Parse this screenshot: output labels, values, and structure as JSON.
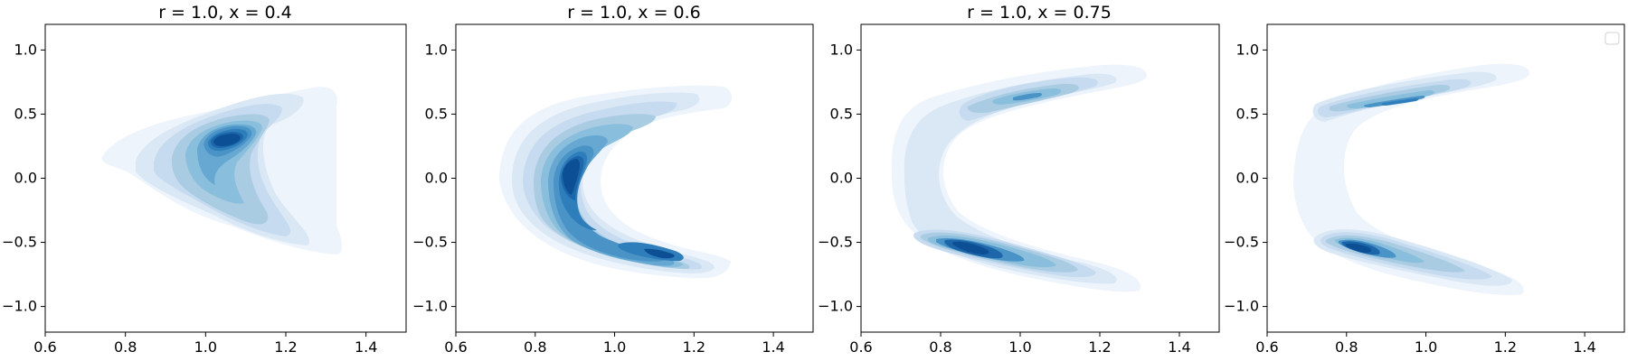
{
  "figure": {
    "colormap": [
      "#eef4fb",
      "#dae8f5",
      "#c6dbef",
      "#a9cce3",
      "#89bedc",
      "#66a8d1",
      "#4a93c6",
      "#2f7ebc",
      "#1c66a9",
      "#0d4f95",
      "#08306b"
    ],
    "frame_color": "#000000"
  },
  "chart_data": [
    {
      "type": "contour",
      "title": "r = 1.0, x = 0.4",
      "xlim": [
        0.6,
        1.5
      ],
      "ylim": [
        -1.2,
        1.2
      ],
      "xticks": [
        0.6,
        0.8,
        1.0,
        1.2,
        1.4
      ],
      "xtick_labels": [
        "0.6",
        "0.8",
        "1.0",
        "1.2",
        "1.4"
      ],
      "yticks": [
        -1.0,
        -0.5,
        0.0,
        0.5,
        1.0
      ],
      "ytick_labels": [
        "−1.0",
        "−0.5",
        "0.0",
        "0.5",
        "1.0"
      ],
      "density_peaks": [
        {
          "x": 1.06,
          "y": 0.27,
          "weight": 1.0
        },
        {
          "x": 1.05,
          "y": -0.3,
          "weight": 0.35
        }
      ]
    },
    {
      "type": "contour",
      "title": "r = 1.0, x = 0.6",
      "xlim": [
        0.6,
        1.5
      ],
      "ylim": [
        -1.2,
        1.2
      ],
      "xticks": [
        0.6,
        0.8,
        1.0,
        1.2,
        1.4
      ],
      "xtick_labels": [
        "0.6",
        "0.8",
        "1.0",
        "1.2",
        "1.4"
      ],
      "yticks": [
        -1.0,
        -0.5,
        0.0,
        0.5,
        1.0
      ],
      "ytick_labels": [
        "−1.0",
        "−0.5",
        "0.0",
        "0.5",
        "1.0"
      ],
      "density_peaks": [
        {
          "x": 0.85,
          "y": 0.05,
          "weight": 1.0
        },
        {
          "x": 1.12,
          "y": -0.58,
          "weight": 0.8
        },
        {
          "x": 1.05,
          "y": 0.45,
          "weight": 0.3
        }
      ]
    },
    {
      "type": "contour",
      "title": "r = 1.0, x = 0.75",
      "xlim": [
        0.6,
        1.5
      ],
      "ylim": [
        -1.2,
        1.2
      ],
      "xticks": [
        0.6,
        0.8,
        1.0,
        1.2,
        1.4
      ],
      "xtick_labels": [
        "0.6",
        "0.8",
        "1.0",
        "1.2",
        "1.4"
      ],
      "yticks": [
        -1.0,
        -0.5,
        0.0,
        0.5,
        1.0
      ],
      "ytick_labels": [
        "−1.0",
        "−0.5",
        "0.0",
        "0.5",
        "1.0"
      ],
      "density_peaks": [
        {
          "x": 0.92,
          "y": -0.55,
          "weight": 1.0
        },
        {
          "x": 1.05,
          "y": 0.63,
          "weight": 0.55
        }
      ]
    },
    {
      "type": "contour",
      "title": "",
      "xlim": [
        0.6,
        1.5
      ],
      "ylim": [
        -1.2,
        1.2
      ],
      "xticks": [
        0.6,
        0.8,
        1.0,
        1.2,
        1.4
      ],
      "xtick_labels": [
        "0.6",
        "0.8",
        "1.0",
        "1.2",
        "1.4"
      ],
      "yticks": [
        -1.0,
        -0.5,
        0.0,
        0.5,
        1.0
      ],
      "ytick_labels": [
        "−1.0",
        "−0.5",
        "0.0",
        "0.5",
        "1.0"
      ],
      "legend": "top-right (empty)",
      "density_peaks": [
        {
          "x": 0.87,
          "y": -0.6,
          "weight": 1.0
        },
        {
          "x": 0.97,
          "y": 0.65,
          "weight": 0.75
        }
      ]
    }
  ]
}
